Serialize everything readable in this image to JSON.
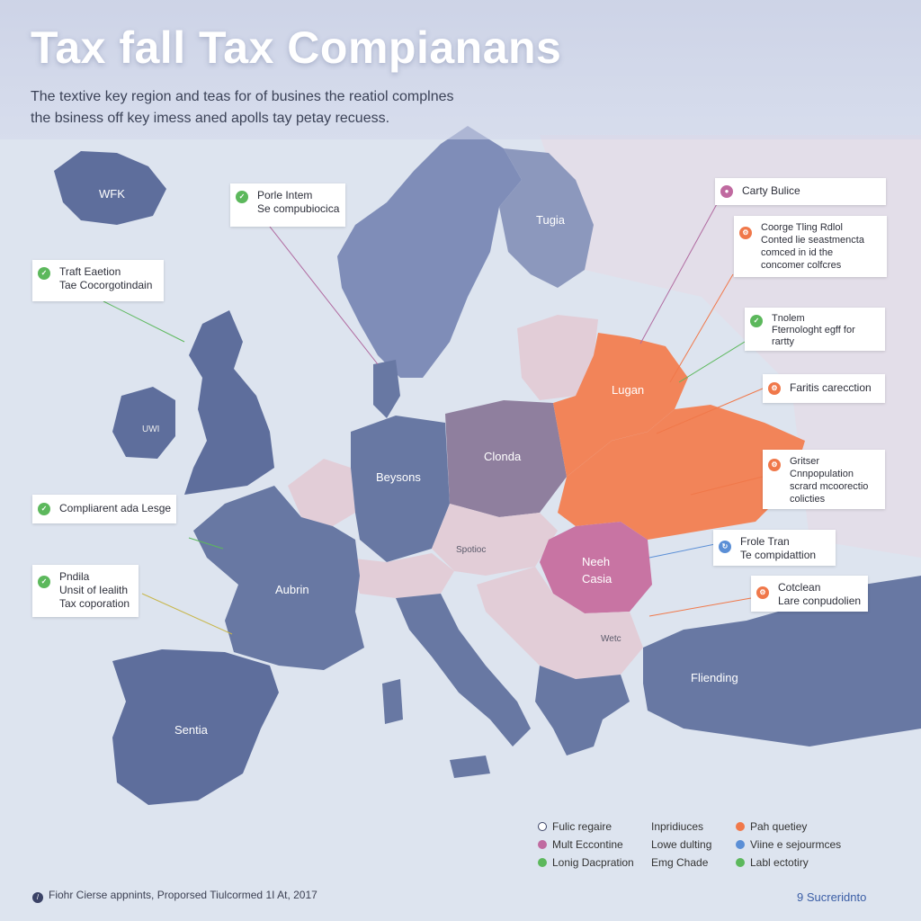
{
  "header": {
    "title": "Tax fall Tax Compianans",
    "subtitle_line1": "The textive key region and teas for of busines  the reatiol complnes",
    "subtitle_line2": "the bsiness off key imess aned apolls tay petay recuess."
  },
  "regions": {
    "wfk": "WFK",
    "tugia": "Tugia",
    "beysons": "Beysons",
    "clonda": "Clonda",
    "lugan": "Lugan",
    "aubrin": "Aubrin",
    "sentia": "Sentia",
    "neeh_casia_1": "Neeh",
    "neeh_casia_2": "Casia",
    "fliending": "Fliending",
    "small_ireland": "UWI",
    "small_central": "Spotioc",
    "small_balkan": "Wetc"
  },
  "callouts": {
    "porle": {
      "lines": [
        "Porle Intem",
        "Se compubiocica"
      ],
      "icon": "check-icon",
      "color": "#5cb85c"
    },
    "traft": {
      "lines": [
        "Traft Eaetion",
        "Tae Cocorgotindain"
      ],
      "icon": "check-icon",
      "color": "#5cb85c"
    },
    "compliarent": {
      "lines": [
        "Compliarent ada Lesge"
      ],
      "icon": "check-icon",
      "color": "#5cb85c"
    },
    "pndila": {
      "lines": [
        "Pndila",
        "Unsit of Iealith",
        "Tax coporation"
      ],
      "icon": "check-icon",
      "color": "#5cb85c"
    },
    "carty": {
      "lines": [
        "Carty Bulice"
      ],
      "icon": "person-icon",
      "color": "#c06aa0"
    },
    "coorge": {
      "lines": [
        "Coorge Tling Rdlol",
        "Conted lie seastmencta",
        "comced in id the",
        "concomer colfcres"
      ],
      "icon": "gear-icon",
      "color": "#f0784a"
    },
    "tnolem": {
      "lines": [
        "Tnolem",
        "Fternologht egff for",
        "rartty"
      ],
      "icon": "check-icon",
      "color": "#5cb85c"
    },
    "faritis": {
      "lines": [
        "Faritis carecction"
      ],
      "icon": "gear-icon",
      "color": "#f0784a"
    },
    "gritser": {
      "lines": [
        "Gritser",
        "Cnnpopulation",
        "scrard mcoorectio",
        "colicties"
      ],
      "icon": "gear-icon",
      "color": "#f0784a"
    },
    "frole": {
      "lines": [
        "Frole Tran",
        "Te compidattion"
      ],
      "icon": "refresh-icon",
      "color": "#5b8fd6"
    },
    "cotclean": {
      "lines": [
        "Cotclean",
        "Lare conpudolien"
      ],
      "icon": "gear-icon",
      "color": "#f0784a"
    }
  },
  "legend": {
    "col1": [
      {
        "label": "Fulic regaire",
        "color": "#3a4266",
        "icon": "settings-icon"
      },
      {
        "label": "Mult Eccontine",
        "color": "#c06aa0"
      },
      {
        "label": "Lonig Dacpration",
        "color": "#5cb85c"
      }
    ],
    "col2": [
      {
        "label": "Inpridiuces"
      },
      {
        "label": "Lowe dulting"
      },
      {
        "label": "Emg Chade"
      }
    ],
    "col3": [
      {
        "label": "Pah quetiey",
        "color": "#f0784a"
      },
      {
        "label": "Viine e sejourmces",
        "color": "#5b8fd6"
      },
      {
        "label": "Labl ectotiry",
        "color": "#5cb85c"
      }
    ]
  },
  "footer": {
    "left_text": "Fiohr Cierse appnints, Proporsed Tiulcormed 1I At, 2017",
    "right_text": "9 Sucreridnto"
  },
  "colors": {
    "ocean": "#dfe6f1",
    "country_blue": "#6878a3",
    "country_light_blue": "#8c98bd",
    "country_pink": "#e2cdd7",
    "country_mauve": "#8f7f9e",
    "country_orange": "#f28459",
    "country_magenta": "#c874a3"
  }
}
